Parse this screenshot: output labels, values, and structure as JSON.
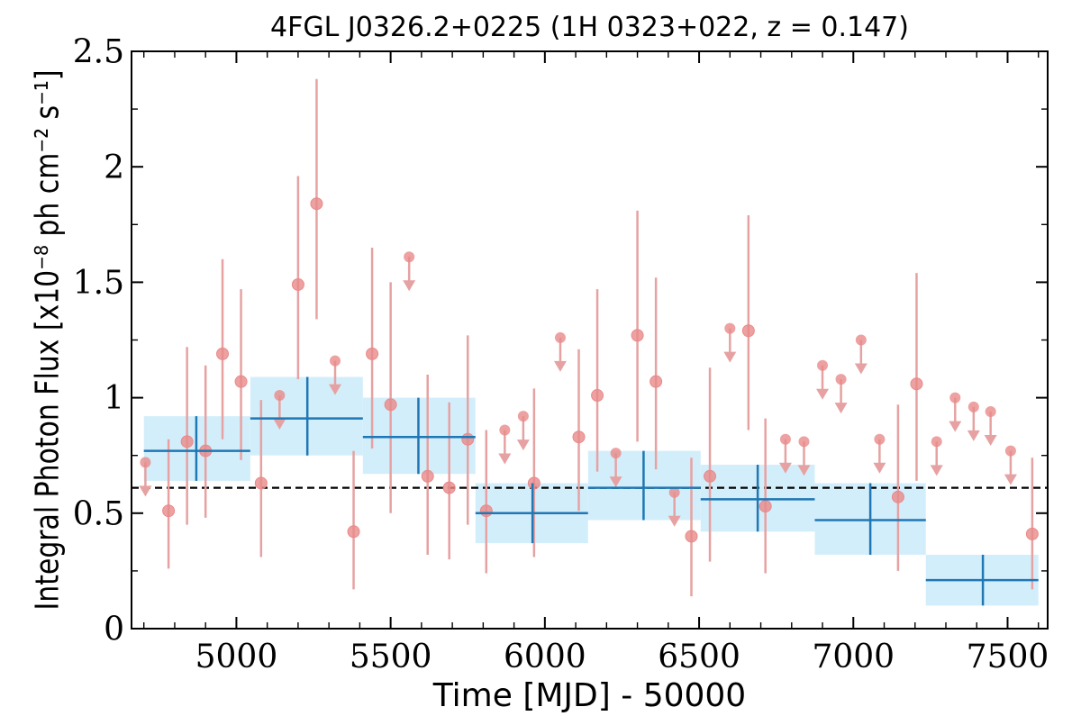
{
  "chart_data": {
    "type": "scatter",
    "title": "4FGL J0326.2+0225 (1H 0323+022, z = 0.147)",
    "xlabel": "Time [MJD] - 50000",
    "ylabel": "Integral Photon Flux [x10⁻⁸ ph cm⁻² s⁻¹]",
    "xlim": [
      4660,
      7630
    ],
    "ylim": [
      0,
      2.5
    ],
    "x_ticks": [
      5000,
      5500,
      6000,
      6500,
      7000,
      7500
    ],
    "x_tick_labels": [
      "5000",
      "5500",
      "6000",
      "6500",
      "7000",
      "7500"
    ],
    "y_ticks": [
      0,
      0.5,
      1,
      1.5,
      2,
      2.5
    ],
    "y_tick_labels": [
      "0",
      "0.5",
      "1",
      "1.5",
      "2",
      "2.5"
    ],
    "mean_flux": 0.61,
    "colors": {
      "short_bin": "#e98a8a",
      "short_bin_err": "#e6a2a2",
      "long_bin_line": "#1f77b4",
      "long_bin_band": "#d3eefb",
      "mean_line": "#000000"
    },
    "series": [
      {
        "kind": "short-bin detections",
        "points": [
          {
            "x": 4780,
            "y": 0.51,
            "lo": 0.26,
            "hi": 0.82
          },
          {
            "x": 4840,
            "y": 0.81,
            "lo": 0.45,
            "hi": 1.22
          },
          {
            "x": 4900,
            "y": 0.77,
            "lo": 0.48,
            "hi": 1.14
          },
          {
            "x": 4955,
            "y": 1.19,
            "lo": 0.82,
            "hi": 1.6
          },
          {
            "x": 5015,
            "y": 1.07,
            "lo": 0.73,
            "hi": 1.47
          },
          {
            "x": 5080,
            "y": 0.63,
            "lo": 0.31,
            "hi": 0.99
          },
          {
            "x": 5200,
            "y": 1.49,
            "lo": 1.08,
            "hi": 1.96
          },
          {
            "x": 5260,
            "y": 1.84,
            "lo": 1.34,
            "hi": 2.38
          },
          {
            "x": 5380,
            "y": 0.42,
            "lo": 0.17,
            "hi": 0.77
          },
          {
            "x": 5440,
            "y": 1.19,
            "lo": 0.78,
            "hi": 1.65
          },
          {
            "x": 5500,
            "y": 0.97,
            "lo": 0.5,
            "hi": 1.5
          },
          {
            "x": 5620,
            "y": 0.66,
            "lo": 0.32,
            "hi": 1.1
          },
          {
            "x": 5690,
            "y": 0.61,
            "lo": 0.3,
            "hi": 0.98
          },
          {
            "x": 5750,
            "y": 0.82,
            "lo": 0.45,
            "hi": 1.27
          },
          {
            "x": 5810,
            "y": 0.51,
            "lo": 0.24,
            "hi": 0.86
          },
          {
            "x": 5965,
            "y": 0.63,
            "lo": 0.31,
            "hi": 1.04
          },
          {
            "x": 6110,
            "y": 0.83,
            "lo": 0.51,
            "hi": 1.21
          },
          {
            "x": 6170,
            "y": 1.01,
            "lo": 0.68,
            "hi": 1.47
          },
          {
            "x": 6300,
            "y": 1.27,
            "lo": 0.81,
            "hi": 1.81
          },
          {
            "x": 6360,
            "y": 1.07,
            "lo": 0.69,
            "hi": 1.52
          },
          {
            "x": 6475,
            "y": 0.4,
            "lo": 0.14,
            "hi": 0.74
          },
          {
            "x": 6535,
            "y": 0.66,
            "lo": 0.29,
            "hi": 1.13
          },
          {
            "x": 6660,
            "y": 1.29,
            "lo": 0.86,
            "hi": 1.79
          },
          {
            "x": 6715,
            "y": 0.53,
            "lo": 0.24,
            "hi": 0.91
          },
          {
            "x": 7145,
            "y": 0.57,
            "lo": 0.25,
            "hi": 0.97
          },
          {
            "x": 7205,
            "y": 1.06,
            "lo": 0.64,
            "hi": 1.54
          },
          {
            "x": 7580,
            "y": 0.41,
            "lo": 0.17,
            "hi": 0.74
          }
        ]
      },
      {
        "kind": "short-bin upper limits",
        "points": [
          {
            "x": 4705,
            "y": 0.72
          },
          {
            "x": 5140,
            "y": 1.01
          },
          {
            "x": 5320,
            "y": 1.16
          },
          {
            "x": 5560,
            "y": 1.61
          },
          {
            "x": 5870,
            "y": 0.86
          },
          {
            "x": 5930,
            "y": 0.92
          },
          {
            "x": 6050,
            "y": 1.26
          },
          {
            "x": 6230,
            "y": 0.76
          },
          {
            "x": 6420,
            "y": 0.59
          },
          {
            "x": 6600,
            "y": 1.3
          },
          {
            "x": 6780,
            "y": 0.82
          },
          {
            "x": 6840,
            "y": 0.81
          },
          {
            "x": 6900,
            "y": 1.14
          },
          {
            "x": 6960,
            "y": 1.08
          },
          {
            "x": 7025,
            "y": 1.25
          },
          {
            "x": 7085,
            "y": 0.82
          },
          {
            "x": 7270,
            "y": 0.81
          },
          {
            "x": 7330,
            "y": 1.0
          },
          {
            "x": 7390,
            "y": 0.96
          },
          {
            "x": 7445,
            "y": 0.94
          },
          {
            "x": 7510,
            "y": 0.77
          }
        ]
      },
      {
        "kind": "long-bin averages",
        "bins": [
          {
            "x0": 4700,
            "x1": 5045,
            "x": 4870,
            "y": 0.77,
            "lo": 0.64,
            "hi": 0.92
          },
          {
            "x0": 5045,
            "x1": 5410,
            "x": 5230,
            "y": 0.91,
            "lo": 0.75,
            "hi": 1.09
          },
          {
            "x0": 5410,
            "x1": 5775,
            "x": 5590,
            "y": 0.83,
            "lo": 0.67,
            "hi": 1.0
          },
          {
            "x0": 5775,
            "x1": 6140,
            "x": 5960,
            "y": 0.5,
            "lo": 0.37,
            "hi": 0.63
          },
          {
            "x0": 6140,
            "x1": 6505,
            "x": 6320,
            "y": 0.61,
            "lo": 0.47,
            "hi": 0.77
          },
          {
            "x0": 6505,
            "x1": 6875,
            "x": 6690,
            "y": 0.56,
            "lo": 0.42,
            "hi": 0.71
          },
          {
            "x0": 6875,
            "x1": 7235,
            "x": 7055,
            "y": 0.47,
            "lo": 0.32,
            "hi": 0.63
          },
          {
            "x0": 7235,
            "x1": 7600,
            "x": 7420,
            "y": 0.21,
            "lo": 0.1,
            "hi": 0.32
          }
        ]
      }
    ]
  }
}
